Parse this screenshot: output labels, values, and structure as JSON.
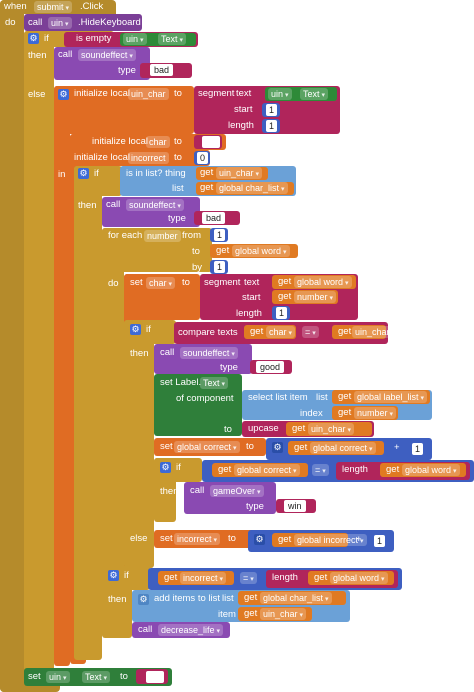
{
  "event": {
    "when": "when",
    "component": "submit",
    "event": ".Click",
    "do": "do"
  },
  "hide": {
    "call": "call",
    "component": "uin",
    "method": ".HideKeyboard"
  },
  "if1": {
    "if": "if",
    "then": "then",
    "else": "else",
    "is_empty": "is empty",
    "comp": "uin",
    "prop": "Text"
  },
  "sound1": {
    "call": "call",
    "proc": "soundeffect",
    "type_label": "type",
    "value": "bad"
  },
  "init_uin_char": {
    "label": "initialize local",
    "var": "uin_char",
    "to": "to",
    "segment": "segment",
    "text": "text",
    "comp": "uin",
    "prop": "Text",
    "start": "start",
    "length": "length",
    "start_val": "1",
    "length_val": "1"
  },
  "init_char": {
    "label": "initialize local",
    "var": "char",
    "to": "to",
    "value": ""
  },
  "init_incorrect": {
    "label": "initialize local",
    "var": "incorrect",
    "to": "to",
    "value": "0"
  },
  "in_label": "in",
  "if2": {
    "if": "if",
    "then": "then",
    "is_in_list": "is in list? thing",
    "get": "get",
    "thing": "uin_char",
    "list_label": "list",
    "list": "global char_list"
  },
  "sound2": {
    "call": "call",
    "proc": "soundeffect",
    "type_label": "type",
    "value": "bad"
  },
  "for_each": {
    "label": "for each",
    "var": "number",
    "from": "from",
    "from_val": "1",
    "to": "to",
    "get": "get",
    "to_var": "global word",
    "by": "by",
    "by_val": "1",
    "do": "do"
  },
  "set_char": {
    "set": "set",
    "var": "char",
    "to": "to",
    "segment": "segment",
    "text": "text",
    "get": "get",
    "text_var": "global word",
    "start": "start",
    "start_var": "number",
    "length": "length",
    "length_val": "1"
  },
  "if3": {
    "if": "if",
    "then": "then",
    "else": "else",
    "compare": "compare texts",
    "get": "get",
    "a": "char",
    "op": "=",
    "b": "uin_char"
  },
  "sound3": {
    "call": "call",
    "proc": "soundeffect",
    "type_label": "type",
    "value": "good"
  },
  "set_label": {
    "set": "set Label.",
    "prop": "Text",
    "of_component": "of component",
    "select": "select list item",
    "list_label": "list",
    "get": "get",
    "list": "global label_list",
    "index": "index",
    "index_var": "number",
    "to": "to",
    "upcase": "upcase",
    "upcase_var": "uin_char"
  },
  "set_correct": {
    "set": "set",
    "var": "global correct",
    "to": "to",
    "get": "get",
    "a": "global correct",
    "op": "+",
    "b": "1"
  },
  "if4": {
    "if": "if",
    "then": "then",
    "get": "get",
    "a": "global correct",
    "op": "=",
    "length": "length",
    "b": "global word"
  },
  "game_over": {
    "call": "call",
    "proc": "gameOver",
    "type_label": "type",
    "value": "win"
  },
  "set_incorrect": {
    "else": "else",
    "set": "set",
    "var": "incorrect",
    "to": "to",
    "get": "get",
    "a": "global incorrect",
    "op": "+",
    "b": "1"
  },
  "if5": {
    "if": "if",
    "then": "then",
    "get": "get",
    "a": "incorrect",
    "op": "=",
    "length": "length",
    "b": "global word"
  },
  "add_items": {
    "label": "add items to list",
    "list_label": "list",
    "get": "get",
    "list": "global char_list",
    "item": "item",
    "item_var": "uin_char"
  },
  "decrease": {
    "call": "call",
    "proc": "decrease_life"
  },
  "set_uin": {
    "set": "set",
    "comp": "uin",
    "prop": "Text",
    "to": "to",
    "value": ""
  },
  "colors": {
    "event": "#b58b2b",
    "component": "#7b3f97",
    "control": "#c99a2e",
    "variable": "#e06c23",
    "text": "#b0255b",
    "logic": "#3d6ad6",
    "list": "#6ba1d7",
    "math": "#3e5fc1",
    "get": "#e07a22",
    "procedure": "#8a4ab2",
    "green": "#2e8a38",
    "component_green": "#2f7f3a"
  }
}
